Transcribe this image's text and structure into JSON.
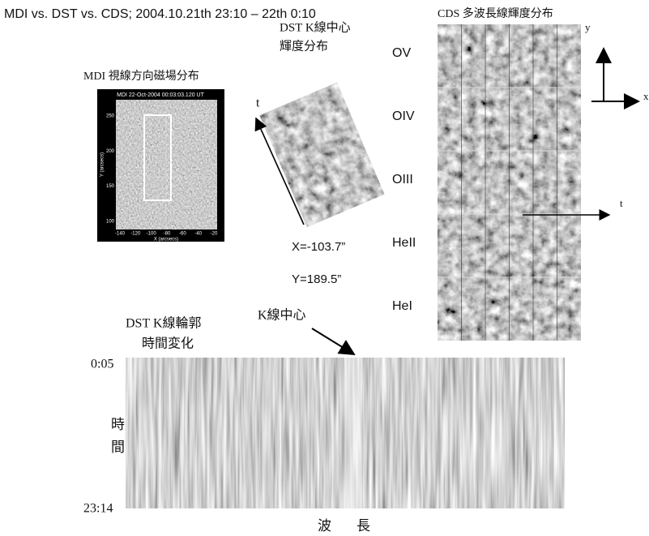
{
  "title": "MDI vs. DST vs. CDS; 2004.10.21th 23:10 – 22th 0:10",
  "mdi": {
    "label": "MDI 視線方向磁場分布",
    "header": "MDI 22-Oct-2004 00:03:03.120 UT",
    "xticks": [
      "-140",
      "-120",
      "-100",
      "-80",
      "-60",
      "-40",
      "-20"
    ],
    "yticks": [
      "250",
      "200",
      "150",
      "100"
    ],
    "xlabel": "X (arcsecs)",
    "ylabel": "Y (arcsecs)"
  },
  "dst": {
    "label": [
      "DST K線中心",
      "輝度分布"
    ],
    "axis": "t",
    "coords": [
      "X=-103.7”",
      "Y=189.5”"
    ]
  },
  "cds": {
    "label": "CDS 多波長線輝度分布",
    "lines": [
      "OV",
      "OIV",
      "OIII",
      "HeII",
      "HeI"
    ],
    "axes": [
      "y",
      "x"
    ],
    "time_axis": "t"
  },
  "profile": {
    "label": [
      "DST K線輪郭",
      "時間変化"
    ],
    "marker": "K線中心",
    "time_start": "0:05",
    "time_end": "23:14",
    "ylabel": [
      "時",
      "間"
    ],
    "xlabel": [
      "波",
      "長"
    ]
  }
}
